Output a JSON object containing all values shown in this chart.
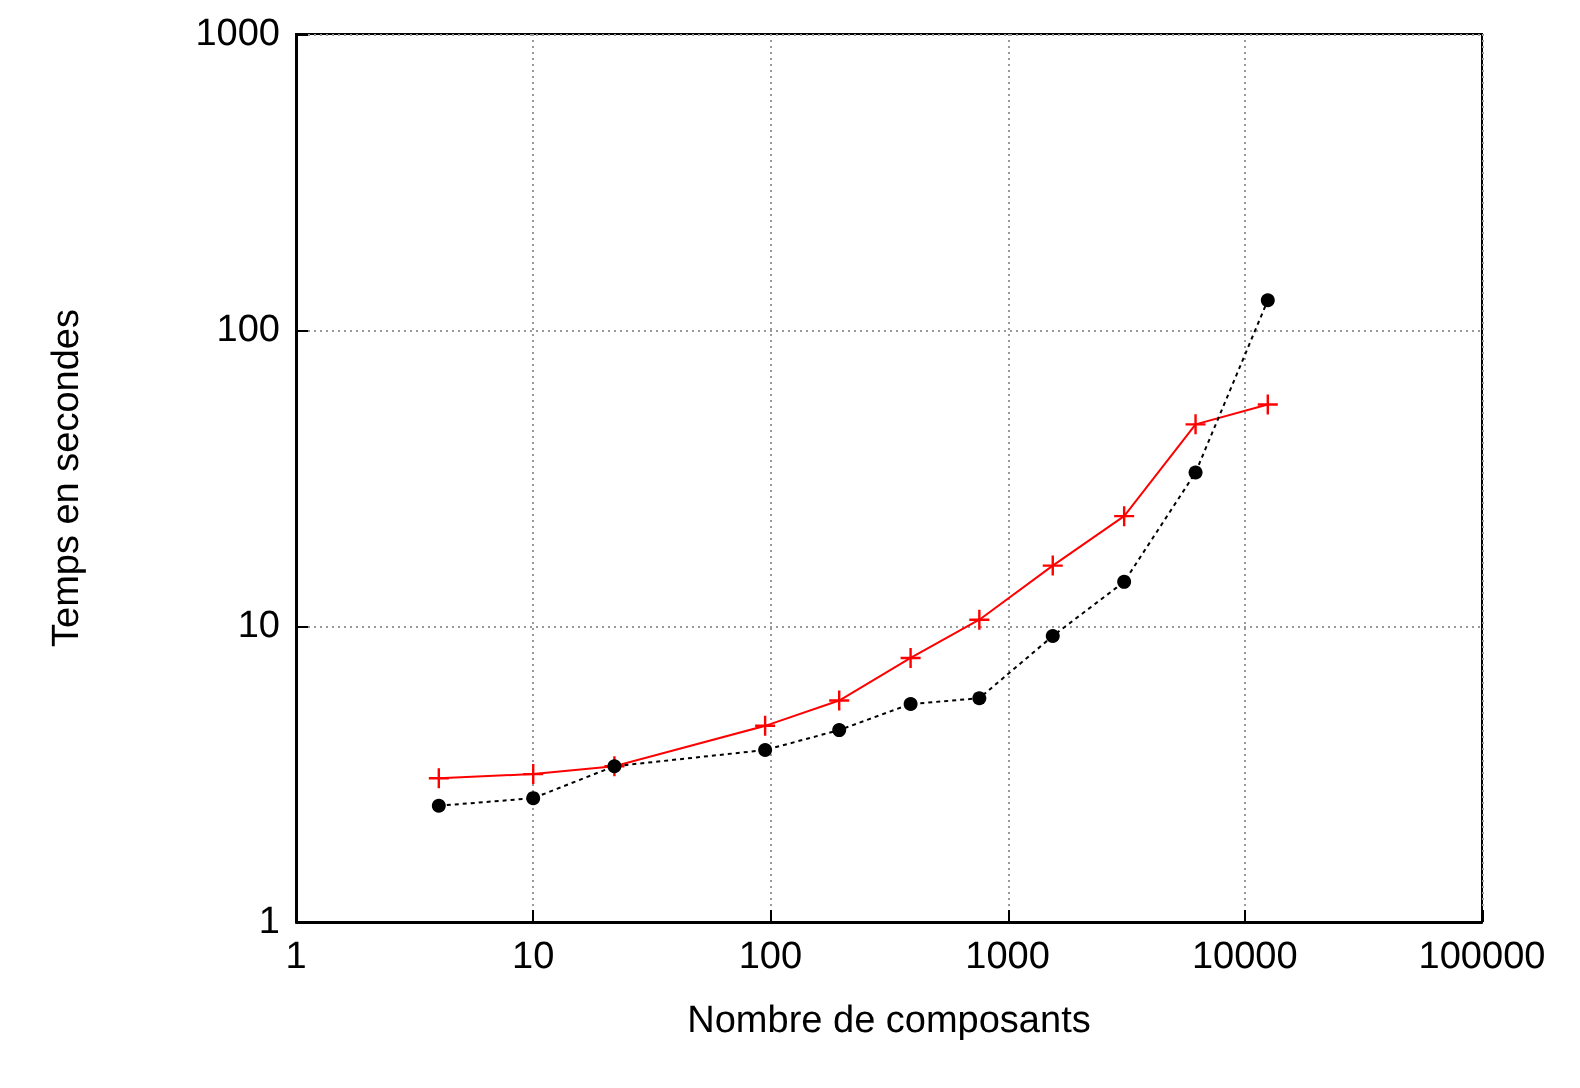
{
  "chart_data": {
    "type": "line",
    "xlabel": "Nombre de composants",
    "ylabel": "Temps en secondes",
    "log": "xy",
    "grid": true,
    "xlim": [
      1,
      100000
    ],
    "xticks": [
      1,
      10,
      100,
      1000,
      10000,
      100000
    ],
    "ylim": [
      1,
      1000
    ],
    "yticks": [
      1,
      10,
      100,
      1000
    ],
    "x": [
      4,
      10,
      22,
      95,
      195,
      390,
      760,
      1550,
      3100,
      6200,
      12500
    ],
    "series": [
      {
        "color": "#ff0000",
        "marker": "cross",
        "line_style": "solid",
        "values": [
          3.06,
          3.16,
          3.36,
          4.6,
          5.6,
          7.8,
          10.5,
          16,
          23.5,
          48,
          56
        ]
      },
      {
        "color": "#000000",
        "marker": "circle",
        "line_style": "dotted",
        "values": [
          2.47,
          2.62,
          3.36,
          3.81,
          4.45,
          5.45,
          5.7,
          9.25,
          14.1,
          33,
          126
        ]
      }
    ]
  }
}
